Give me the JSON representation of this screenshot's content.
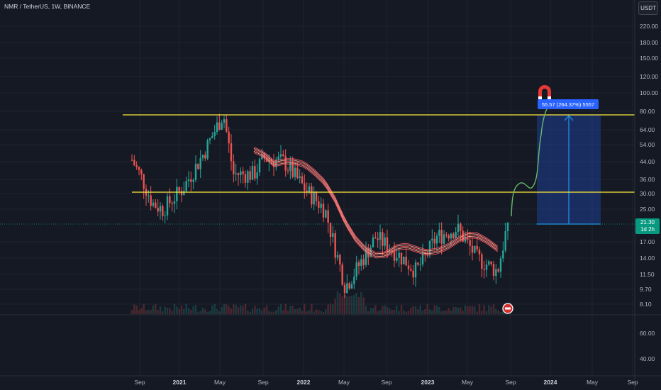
{
  "header": {
    "title": "NMR / TetherUS, 1W, BINANCE",
    "currency_button": "USDT"
  },
  "price_axis": {
    "upper_ticks": [
      "220.00",
      "180.00",
      "150.00",
      "120.00",
      "100.00",
      "80.00",
      "64.00",
      "54.00",
      "44.00",
      "36.00",
      "30.00",
      "25.00",
      "17.00",
      "14.00",
      "11.50",
      "9.70",
      "8.10"
    ],
    "lower_ticks": [
      "60.00",
      "40.00"
    ],
    "current_price": "21.30",
    "countdown": "1d 2h"
  },
  "time_axis": {
    "ticks": [
      {
        "label": "Sep",
        "bold": false
      },
      {
        "label": "2021",
        "bold": true
      },
      {
        "label": "May",
        "bold": false
      },
      {
        "label": "Sep",
        "bold": false
      },
      {
        "label": "2022",
        "bold": true
      },
      {
        "label": "May",
        "bold": false
      },
      {
        "label": "Sep",
        "bold": false
      },
      {
        "label": "2023",
        "bold": true
      },
      {
        "label": "May",
        "bold": false
      },
      {
        "label": "Sep",
        "bold": false
      },
      {
        "label": "2024",
        "bold": true
      },
      {
        "label": "May",
        "bold": false
      },
      {
        "label": "Sep",
        "bold": false
      }
    ]
  },
  "annotations": {
    "measure_label": "55.57 (264.37%) 5557",
    "resistance_level": 80,
    "support_level": 31
  },
  "colors": {
    "up": "#26a69a",
    "down": "#ef5350",
    "level_line": "#ffeb3b",
    "ma_band": "#f7525f",
    "measure": "#2962ff",
    "projection": "#66bb6a"
  },
  "icons": [
    "magnet-icon",
    "bar-replay-icon"
  ],
  "chart_data": {
    "type": "candlestick",
    "symbol": "NMR / TetherUS",
    "interval": "1W",
    "exchange": "BINANCE",
    "scale": "log",
    "ylim": [
      7.5,
      260
    ],
    "approx_close_path": [
      {
        "x": "2020-08",
        "y": 45
      },
      {
        "x": "2020-09",
        "y": 36
      },
      {
        "x": "2020-10",
        "y": 27
      },
      {
        "x": "2020-11",
        "y": 25
      },
      {
        "x": "2021-01",
        "y": 32
      },
      {
        "x": "2021-03",
        "y": 48
      },
      {
        "x": "2021-05",
        "y": 78
      },
      {
        "x": "2021-06",
        "y": 38
      },
      {
        "x": "2021-08",
        "y": 38
      },
      {
        "x": "2021-09",
        "y": 46
      },
      {
        "x": "2021-11",
        "y": 44
      },
      {
        "x": "2022-01",
        "y": 32
      },
      {
        "x": "2022-03",
        "y": 25
      },
      {
        "x": "2022-05",
        "y": 10
      },
      {
        "x": "2022-06",
        "y": 12
      },
      {
        "x": "2022-08",
        "y": 18
      },
      {
        "x": "2022-10",
        "y": 15
      },
      {
        "x": "2022-12",
        "y": 12
      },
      {
        "x": "2023-02",
        "y": 18
      },
      {
        "x": "2023-04",
        "y": 20
      },
      {
        "x": "2023-06",
        "y": 14
      },
      {
        "x": "2023-08",
        "y": 12
      },
      {
        "x": "2023-09",
        "y": 21.3
      }
    ]
  }
}
